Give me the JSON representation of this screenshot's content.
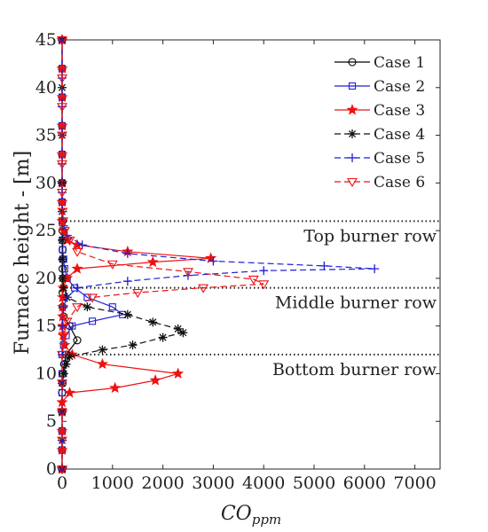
{
  "chart_data": {
    "type": "line",
    "xlabel": "CO",
    "xlabel_sub": "ppm",
    "ylabel": "Furnace height - [m]",
    "xlim": [
      0,
      7500
    ],
    "ylim": [
      0,
      45
    ],
    "xticks": [
      0,
      1000,
      2000,
      3000,
      4000,
      5000,
      6000,
      7000
    ],
    "yticks": [
      0,
      5,
      10,
      15,
      20,
      25,
      30,
      35,
      40,
      45
    ],
    "grid": false,
    "legend_position": "top-right",
    "burner_rows": [
      {
        "label": "Top burner row",
        "y": 26
      },
      {
        "label": "Middle burner row",
        "y": 19
      },
      {
        "label": "Bottom burner row",
        "y": 12
      }
    ],
    "series": [
      {
        "name": "Case 1",
        "color": "#000000",
        "dash": "solid",
        "marker": "circle",
        "points": [
          [
            0,
            0
          ],
          [
            0,
            2
          ],
          [
            0,
            4
          ],
          [
            0,
            6
          ],
          [
            0,
            8
          ],
          [
            10,
            9
          ],
          [
            20,
            10
          ],
          [
            40,
            11
          ],
          [
            80,
            12
          ],
          [
            300,
            13.5
          ],
          [
            150,
            15
          ],
          [
            30,
            16
          ],
          [
            10,
            17
          ],
          [
            10,
            18.5
          ],
          [
            20,
            20
          ],
          [
            10,
            21
          ],
          [
            10,
            22
          ],
          [
            10,
            23
          ],
          [
            10,
            24
          ],
          [
            10,
            25
          ],
          [
            10,
            26
          ],
          [
            0,
            28
          ],
          [
            0,
            30
          ],
          [
            0,
            33
          ],
          [
            0,
            36
          ],
          [
            0,
            39
          ],
          [
            0,
            42
          ],
          [
            0,
            45
          ]
        ]
      },
      {
        "name": "Case 2",
        "color": "#1f1fd6",
        "dash": "solid",
        "marker": "square",
        "points": [
          [
            0,
            0
          ],
          [
            0,
            2
          ],
          [
            0,
            4
          ],
          [
            0,
            6
          ],
          [
            0,
            8
          ],
          [
            0,
            10
          ],
          [
            0,
            12
          ],
          [
            30,
            13
          ],
          [
            80,
            14
          ],
          [
            200,
            15
          ],
          [
            600,
            15.5
          ],
          [
            1200,
            16.2
          ],
          [
            1000,
            17
          ],
          [
            500,
            18
          ],
          [
            250,
            19
          ],
          [
            100,
            20
          ],
          [
            50,
            21
          ],
          [
            30,
            22
          ],
          [
            10,
            23
          ],
          [
            10,
            24
          ],
          [
            0,
            26
          ],
          [
            0,
            28
          ],
          [
            0,
            30
          ],
          [
            0,
            33
          ],
          [
            0,
            36
          ],
          [
            0,
            39
          ],
          [
            0,
            42
          ],
          [
            0,
            45
          ]
        ]
      },
      {
        "name": "Case 3",
        "color": "#ee1111",
        "dash": "solid",
        "marker": "star",
        "points": [
          [
            0,
            0
          ],
          [
            0,
            2
          ],
          [
            0,
            4
          ],
          [
            0,
            6
          ],
          [
            0,
            7
          ],
          [
            150,
            8
          ],
          [
            1050,
            8.5
          ],
          [
            1850,
            9.3
          ],
          [
            2300,
            10
          ],
          [
            800,
            11
          ],
          [
            200,
            12
          ],
          [
            50,
            13
          ],
          [
            20,
            14
          ],
          [
            10,
            15
          ],
          [
            10,
            16
          ],
          [
            10,
            17
          ],
          [
            10,
            18
          ],
          [
            20,
            19
          ],
          [
            100,
            20
          ],
          [
            300,
            21
          ],
          [
            1800,
            21.7
          ],
          [
            2950,
            22.1
          ],
          [
            1300,
            22.8
          ],
          [
            300,
            23.5
          ],
          [
            100,
            24
          ],
          [
            30,
            25
          ],
          [
            0,
            26
          ],
          [
            0,
            28
          ],
          [
            0,
            30
          ],
          [
            0,
            33
          ],
          [
            0,
            36
          ],
          [
            0,
            39
          ],
          [
            0,
            42
          ],
          [
            0,
            45
          ]
        ]
      },
      {
        "name": "Case 4",
        "color": "#111111",
        "dash": "dashed",
        "marker": "asterisk",
        "points": [
          [
            0,
            0
          ],
          [
            0,
            3
          ],
          [
            0,
            6
          ],
          [
            0,
            9
          ],
          [
            30,
            10
          ],
          [
            80,
            11
          ],
          [
            150,
            11.8
          ],
          [
            800,
            12.5
          ],
          [
            1400,
            13
          ],
          [
            2000,
            13.8
          ],
          [
            2400,
            14.3
          ],
          [
            2300,
            14.7
          ],
          [
            1800,
            15.4
          ],
          [
            1300,
            16.2
          ],
          [
            500,
            17
          ],
          [
            100,
            18
          ],
          [
            30,
            19
          ],
          [
            10,
            20
          ],
          [
            10,
            22
          ],
          [
            0,
            24
          ],
          [
            0,
            27
          ],
          [
            0,
            30
          ],
          [
            0,
            35
          ],
          [
            0,
            40
          ],
          [
            0,
            45
          ]
        ]
      },
      {
        "name": "Case 5",
        "color": "#1f1fd6",
        "dash": "dashed",
        "marker": "plus",
        "points": [
          [
            0,
            0
          ],
          [
            0,
            3
          ],
          [
            0,
            6
          ],
          [
            0,
            9
          ],
          [
            0,
            12
          ],
          [
            0,
            15
          ],
          [
            30,
            17
          ],
          [
            100,
            18
          ],
          [
            300,
            19
          ],
          [
            1300,
            19.7
          ],
          [
            2500,
            20.3
          ],
          [
            4000,
            20.8
          ],
          [
            6200,
            21
          ],
          [
            5200,
            21.3
          ],
          [
            3000,
            21.8
          ],
          [
            1300,
            22.6
          ],
          [
            400,
            23.5
          ],
          [
            100,
            24.5
          ],
          [
            30,
            25.5
          ],
          [
            10,
            27
          ],
          [
            0,
            29
          ],
          [
            0,
            32
          ],
          [
            0,
            35
          ],
          [
            0,
            38
          ],
          [
            0,
            41
          ],
          [
            0,
            45
          ]
        ]
      },
      {
        "name": "Case 6",
        "color": "#ee1111",
        "dash": "dashed",
        "marker": "triangle-down",
        "points": [
          [
            0,
            0
          ],
          [
            0,
            3
          ],
          [
            0,
            6
          ],
          [
            0,
            9
          ],
          [
            0,
            12
          ],
          [
            30,
            14
          ],
          [
            100,
            15.5
          ],
          [
            300,
            17
          ],
          [
            600,
            18
          ],
          [
            1500,
            18.5
          ],
          [
            2800,
            19
          ],
          [
            4000,
            19.4
          ],
          [
            3800,
            19.9
          ],
          [
            2500,
            20.7
          ],
          [
            1000,
            21.5
          ],
          [
            300,
            22.8
          ],
          [
            150,
            24
          ],
          [
            50,
            25
          ],
          [
            20,
            26
          ],
          [
            10,
            27
          ],
          [
            0,
            29
          ],
          [
            0,
            32
          ],
          [
            0,
            35
          ],
          [
            0,
            38
          ],
          [
            0,
            41
          ],
          [
            0,
            45
          ]
        ]
      }
    ]
  }
}
